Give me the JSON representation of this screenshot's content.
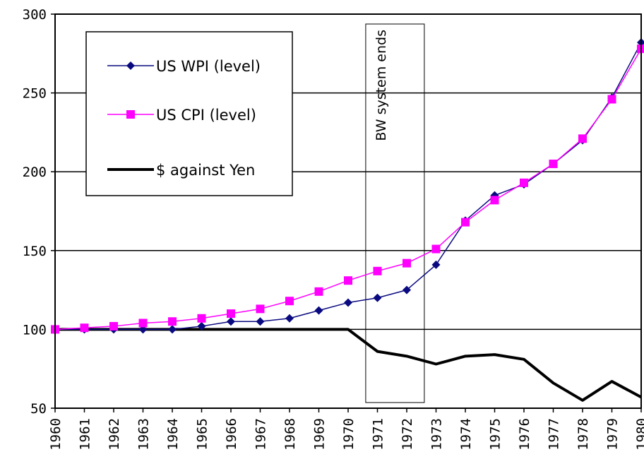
{
  "chart_data": {
    "type": "line",
    "x": [
      "1960",
      "1961",
      "1962",
      "1963",
      "1964",
      "1965",
      "1966",
      "1967",
      "1968",
      "1969",
      "1970",
      "1971",
      "1972",
      "1973",
      "1974",
      "1975",
      "1976",
      "1977",
      "1978",
      "1979",
      "1980"
    ],
    "ylim": [
      50,
      300
    ],
    "yticks": [
      50,
      100,
      150,
      200,
      250,
      300
    ],
    "grid": "horizontal",
    "legend_position": "top-left",
    "series": [
      {
        "name": "US WPI (level)",
        "color": "#0a0a80",
        "marker": "diamond",
        "values": [
          100,
          100,
          100,
          100,
          100,
          102,
          105,
          105,
          107,
          112,
          117,
          120,
          125,
          141,
          169,
          185,
          192,
          205,
          220,
          247,
          282
        ]
      },
      {
        "name": "US CPI (level)",
        "color": "#ff00ff",
        "marker": "square",
        "values": [
          100,
          101,
          102,
          104,
          105,
          107,
          110,
          113,
          118,
          124,
          131,
          137,
          142,
          151,
          168,
          182,
          193,
          205,
          221,
          246,
          278
        ]
      },
      {
        "name": "$ against Yen",
        "color": "#000000",
        "marker": "none",
        "values": [
          100,
          100,
          100,
          100,
          100,
          100,
          100,
          100,
          100,
          100,
          100,
          86,
          83,
          78,
          83,
          84,
          81,
          66,
          55,
          67,
          57
        ]
      }
    ],
    "annotations": [
      {
        "text": "BW system ends",
        "x_from": "1970.6",
        "x_to": "1972.6"
      }
    ]
  }
}
